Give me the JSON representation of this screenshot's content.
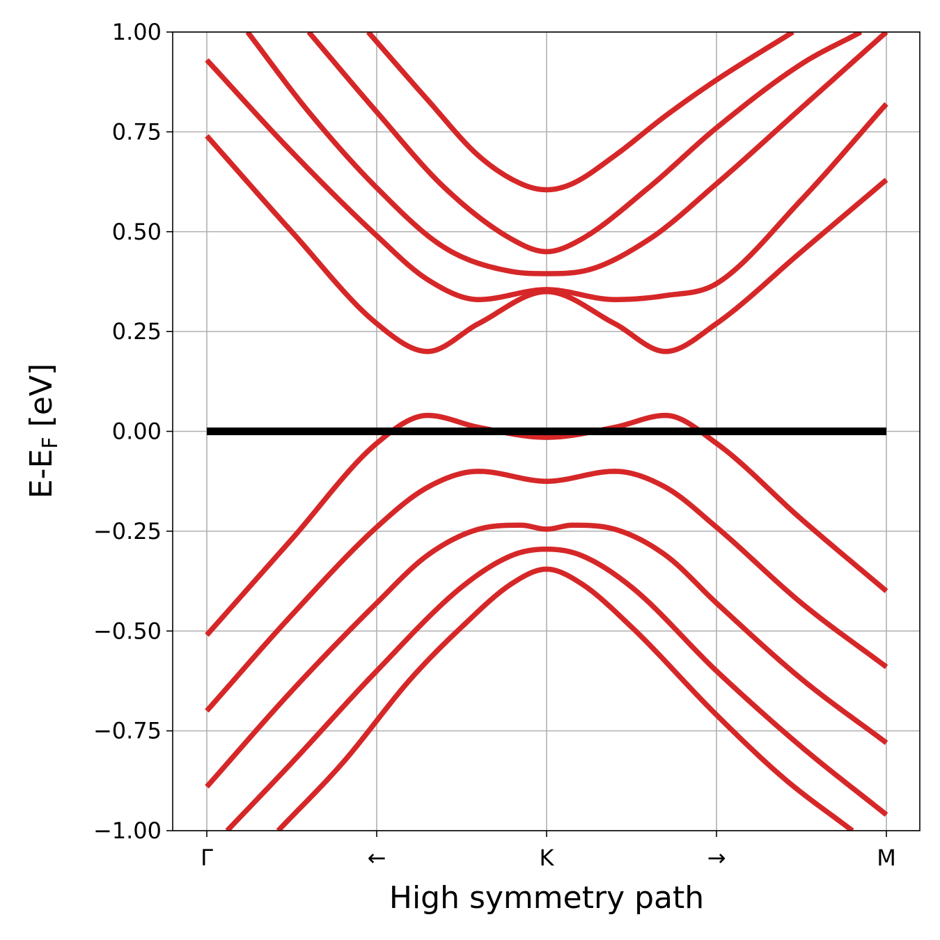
{
  "chart_data": {
    "type": "line",
    "title": "",
    "xlabel": "High symmetry path",
    "ylabel_main": "E-E",
    "ylabel_sub": "F",
    "ylabel_unit": " [eV]",
    "xlim": [
      0,
      4
    ],
    "ylim": [
      -1.0,
      1.0
    ],
    "grid": true,
    "x_ticks": [
      {
        "x": 0,
        "label": "Γ"
      },
      {
        "x": 1,
        "label": "←"
      },
      {
        "x": 2,
        "label": "K"
      },
      {
        "x": 3,
        "label": "→"
      },
      {
        "x": 4,
        "label": "M"
      }
    ],
    "y_ticks": [
      {
        "y": 1.0,
        "label": "1.00"
      },
      {
        "y": 0.75,
        "label": "0.75"
      },
      {
        "y": 0.5,
        "label": "0.50"
      },
      {
        "y": 0.25,
        "label": "0.25"
      },
      {
        "y": 0.0,
        "label": "0.00"
      },
      {
        "y": -0.25,
        "label": "−0.25"
      },
      {
        "y": -0.5,
        "label": "−0.50"
      },
      {
        "y": -0.75,
        "label": "−0.75"
      },
      {
        "y": -1.0,
        "label": "−1.00"
      }
    ],
    "colors": {
      "bands": "#d62728",
      "fermi": "#000000",
      "grid": "#b0b0b0"
    },
    "fermi_level": {
      "y": 0.0,
      "x_range": [
        0,
        4
      ]
    },
    "series": [
      {
        "x": [
          0,
          0.5,
          1.0,
          1.3,
          1.6,
          2.0,
          2.4,
          2.7,
          3.0,
          3.5,
          4.0
        ],
        "y": [
          -0.51,
          -0.27,
          -0.03,
          0.04,
          0.01,
          -0.015,
          0.01,
          0.04,
          -0.03,
          -0.22,
          -0.4
        ]
      },
      {
        "x": [
          0,
          0.5,
          1.0,
          1.3,
          1.6,
          2.0,
          2.4,
          2.7,
          3.0,
          3.5,
          4.0
        ],
        "y": [
          -0.7,
          -0.46,
          -0.24,
          -0.14,
          -0.1,
          -0.125,
          -0.1,
          -0.14,
          -0.24,
          -0.43,
          -0.59
        ]
      },
      {
        "x": [
          0,
          0.5,
          1.0,
          1.3,
          1.6,
          1.85,
          2.0,
          2.15,
          2.4,
          2.7,
          3.0,
          3.5,
          4.0
        ],
        "y": [
          -0.89,
          -0.65,
          -0.43,
          -0.31,
          -0.245,
          -0.235,
          -0.245,
          -0.235,
          -0.245,
          -0.31,
          -0.43,
          -0.62,
          -0.78
        ]
      },
      {
        "x": [
          0.12,
          0.5,
          1.0,
          1.5,
          1.8,
          2.0,
          2.2,
          2.5,
          3.0,
          3.5,
          4.0
        ],
        "y": [
          -1.0,
          -0.83,
          -0.6,
          -0.39,
          -0.31,
          -0.295,
          -0.31,
          -0.39,
          -0.6,
          -0.79,
          -0.96
        ]
      },
      {
        "x": [
          0.42,
          0.8,
          1.2,
          1.5,
          1.8,
          2.0,
          2.2,
          2.5,
          3.0,
          3.4,
          3.8
        ],
        "y": [
          -1.0,
          -0.83,
          -0.62,
          -0.49,
          -0.38,
          -0.345,
          -0.38,
          -0.49,
          -0.71,
          -0.87,
          -1.0
        ]
      },
      {
        "x": [
          0,
          0.5,
          1.0,
          1.3,
          1.6,
          2.0,
          2.4,
          2.7,
          3.0,
          3.5,
          4.0
        ],
        "y": [
          0.74,
          0.5,
          0.27,
          0.2,
          0.27,
          0.35,
          0.27,
          0.2,
          0.27,
          0.45,
          0.63
        ]
      },
      {
        "x": [
          0,
          0.5,
          1.0,
          1.3,
          1.6,
          2.0,
          2.4,
          2.7,
          3.0,
          3.5,
          4.0
        ],
        "y": [
          0.93,
          0.7,
          0.49,
          0.38,
          0.33,
          0.355,
          0.33,
          0.34,
          0.37,
          0.58,
          0.82
        ]
      },
      {
        "x": [
          0.24,
          0.6,
          1.0,
          1.4,
          1.8,
          2.0,
          2.2,
          2.6,
          3.0,
          3.5,
          4.0
        ],
        "y": [
          1.0,
          0.8,
          0.61,
          0.46,
          0.4,
          0.395,
          0.4,
          0.48,
          0.62,
          0.81,
          1.0
        ]
      },
      {
        "x": [
          0.6,
          1.0,
          1.4,
          1.8,
          2.0,
          2.2,
          2.6,
          3.0,
          3.5,
          3.85
        ],
        "y": [
          1.0,
          0.8,
          0.61,
          0.48,
          0.45,
          0.48,
          0.61,
          0.76,
          0.92,
          1.0
        ]
      },
      {
        "x": [
          0.95,
          1.3,
          1.6,
          1.85,
          2.0,
          2.15,
          2.4,
          2.7,
          3.0,
          3.45
        ],
        "y": [
          1.0,
          0.83,
          0.69,
          0.62,
          0.605,
          0.62,
          0.69,
          0.79,
          0.88,
          1.0
        ]
      }
    ]
  }
}
